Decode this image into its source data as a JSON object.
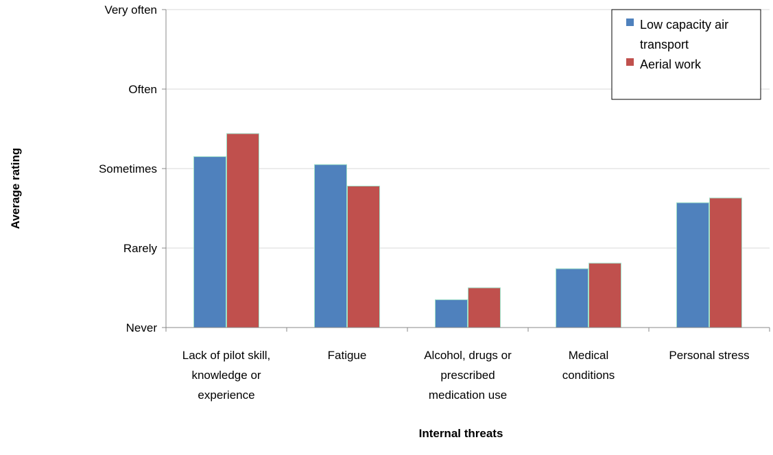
{
  "chart_data": {
    "type": "bar",
    "categories": [
      [
        "Lack of pilot skill,",
        "knowledge or",
        "experience"
      ],
      [
        "Fatigue"
      ],
      [
        "Alcohol, drugs or",
        "prescribed",
        "medication use"
      ],
      [
        "Medical",
        "conditions"
      ],
      [
        "Personal stress"
      ]
    ],
    "series": [
      {
        "name": [
          "Low capacity air",
          "transport"
        ],
        "color": "#4f81bd",
        "values": [
          2.15,
          2.05,
          0.35,
          0.74,
          1.57
        ]
      },
      {
        "name": [
          "Aerial work"
        ],
        "color": "#c0504d",
        "values": [
          2.44,
          1.78,
          0.5,
          0.81,
          1.63
        ]
      }
    ],
    "y_ticks": [
      "Never",
      "Rarely",
      "Sometimes",
      "Often",
      "Very often"
    ],
    "ylim": [
      0,
      4
    ],
    "xlabel": "Internal threats",
    "ylabel": "Average rating",
    "grid": true,
    "legend_position": "top-right"
  }
}
